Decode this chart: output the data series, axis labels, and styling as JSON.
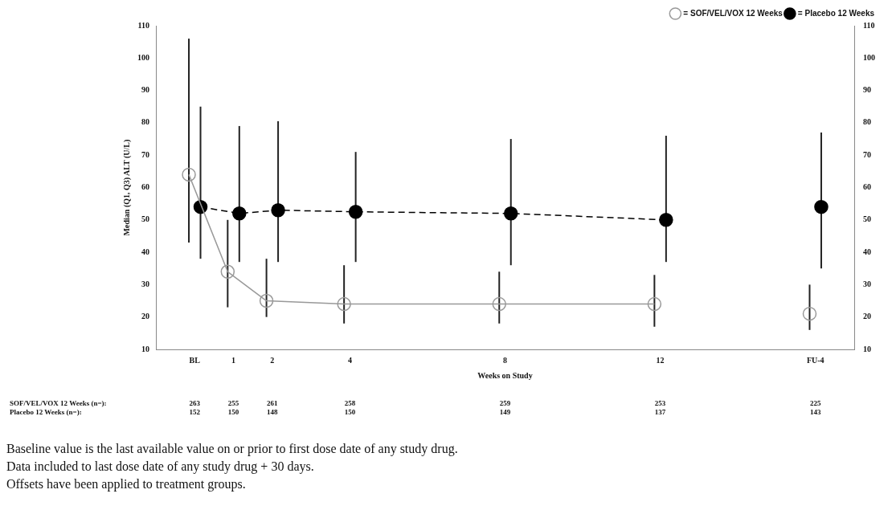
{
  "chart_data": {
    "type": "line",
    "xlabel": "Weeks on Study",
    "ylabel": "Median (Q1, Q3) ALT (U/L)",
    "xlim": [
      -1,
      17
    ],
    "xticks": [
      {
        "value": 0,
        "label": "BL"
      },
      1,
      2,
      4,
      8,
      12,
      {
        "value": 16,
        "label": "FU-4"
      }
    ],
    "ylim": [
      10,
      110
    ],
    "yticks": [
      10,
      20,
      30,
      40,
      50,
      60,
      70,
      80,
      90,
      100,
      110
    ],
    "y2lim": [
      10,
      110
    ],
    "y2ticks": [
      10,
      20,
      30,
      40,
      50,
      60,
      70,
      80,
      90,
      100,
      110
    ],
    "grid": false,
    "legend": "top right",
    "series": [
      {
        "name": "= SOF/VEL/VOX 12 Weeks",
        "color": "#999999",
        "marker": "circle",
        "line_style": "solid",
        "x": [
          -0.15,
          0.85,
          1.85,
          3.85,
          7.85,
          11.85
        ],
        "values": [
          64,
          34,
          25,
          24,
          24,
          24
        ],
        "errors": [
          [
            43,
            106
          ],
          [
            23,
            50
          ],
          [
            20,
            38
          ],
          [
            18,
            36
          ],
          [
            18,
            34
          ],
          [
            17,
            33
          ]
        ]
      },
      {
        "name": "= Placebo 12 Weeks",
        "color": "#000000",
        "marker": "circle",
        "line_style": "dashed",
        "x": [
          0.15,
          1.15,
          2.15,
          4.15,
          8.15,
          12.15
        ],
        "values": [
          54,
          52,
          53,
          52.5,
          52,
          50
        ],
        "errors": [
          [
            38,
            85
          ],
          [
            37,
            79
          ],
          [
            37,
            80.5
          ],
          [
            37,
            71
          ],
          [
            36,
            75
          ],
          [
            37,
            76
          ]
        ]
      },
      {
        "type": "scatter",
        "color": "#999999",
        "marker": "circle",
        "x": [
          15.85
        ],
        "values": [
          21
        ],
        "errors": [
          [
            16,
            30
          ]
        ]
      },
      {
        "type": "scatter",
        "color": "#000000",
        "marker": "circle",
        "x": [
          16.15
        ],
        "values": [
          54
        ],
        "errors": [
          [
            35,
            77
          ]
        ]
      }
    ],
    "annotations": [
      "SOF/VEL/VOX 12 Weeks (n=):",
      "263",
      "255",
      "261",
      "258",
      "259",
      "253",
      "225",
      "Placebo 12 Weeks (n=):",
      "152",
      "150",
      "148",
      "150",
      "149",
      "137",
      "143",
      "Baseline value is the last available value on or prior to first dose date of any study drug.",
      "Data included to last dose date of any study drug + 30 days.",
      "Offsets have been applied to treatment groups."
    ]
  }
}
